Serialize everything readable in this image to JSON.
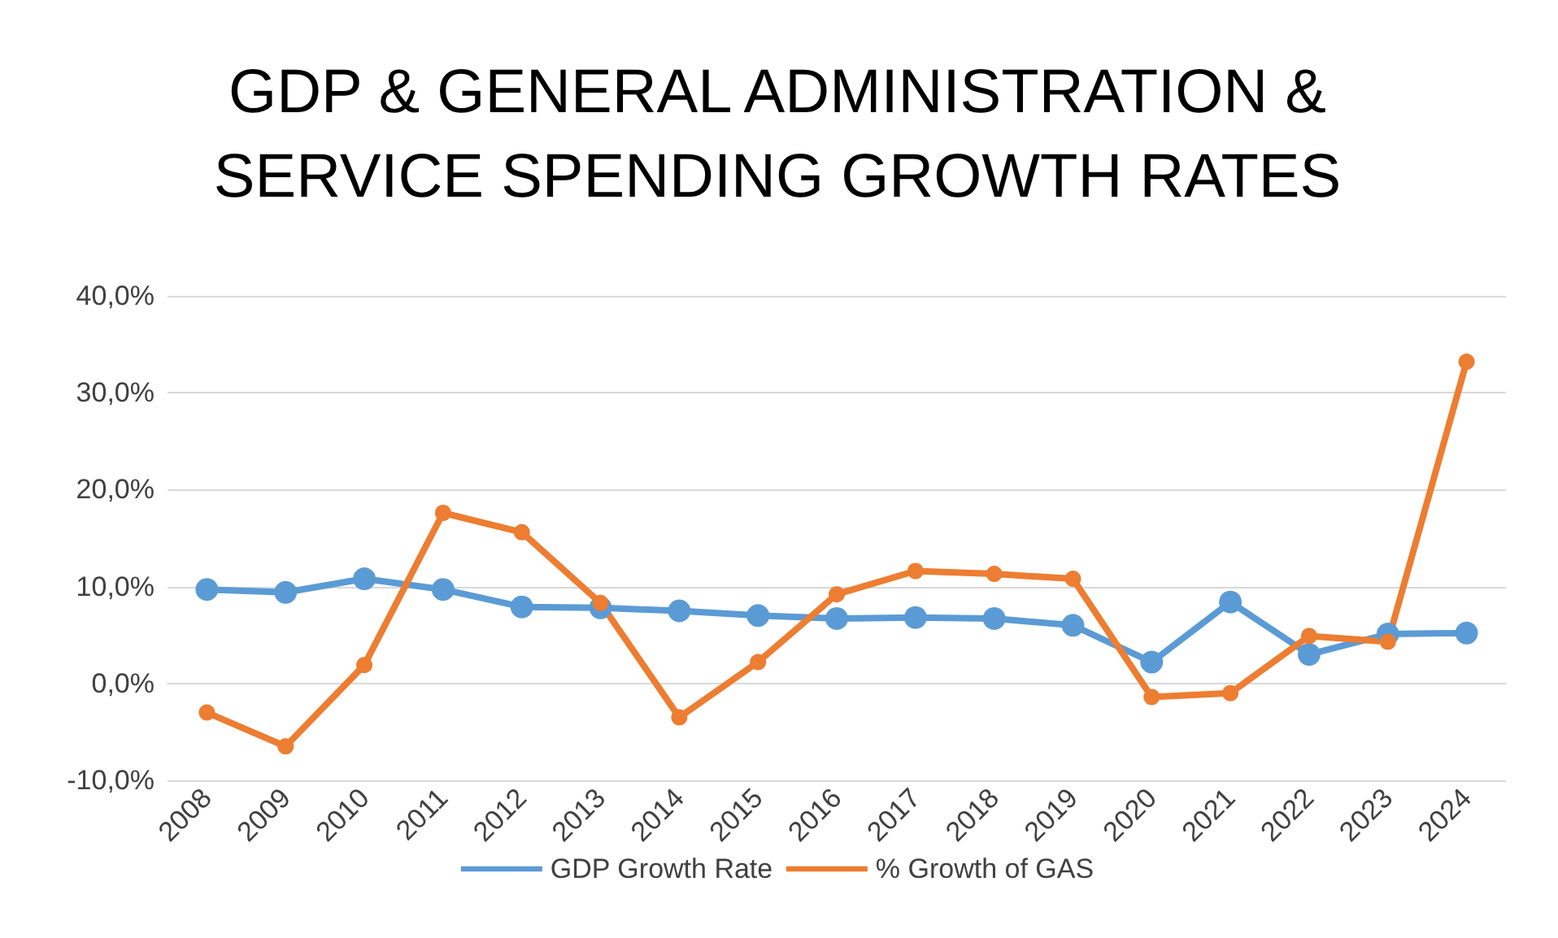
{
  "chart_data": {
    "type": "line",
    "title": "GDP & GENERAL ADMINISTRATION &\nSERVICE SPENDING GROWTH RATES",
    "categories": [
      "2008",
      "2009",
      "2010",
      "2011",
      "2012",
      "2013",
      "2014",
      "2015",
      "2016",
      "2017",
      "2018",
      "2019",
      "2020",
      "2021",
      "2022",
      "2023",
      "2024"
    ],
    "series": [
      {
        "name": "GDP Growth Rate",
        "color": "#5b9bd5",
        "values": [
          9.7,
          9.4,
          10.8,
          9.7,
          7.9,
          7.8,
          7.5,
          7.0,
          6.7,
          6.8,
          6.7,
          6.0,
          2.2,
          8.4,
          3.0,
          5.1,
          5.2
        ]
      },
      {
        "name": "% Growth of GAS",
        "color": "#ed7d31",
        "values": [
          -3.0,
          -6.5,
          1.9,
          17.6,
          15.6,
          8.3,
          -3.5,
          2.2,
          9.2,
          11.6,
          11.3,
          10.8,
          -1.4,
          -1.0,
          4.9,
          4.3,
          33.2
        ]
      }
    ],
    "ylim": [
      -10,
      40
    ],
    "yticks": [
      {
        "value": -10,
        "label": "-10,0%"
      },
      {
        "value": 0,
        "label": "0,0%"
      },
      {
        "value": 10,
        "label": "10,0%"
      },
      {
        "value": 20,
        "label": "20,0%"
      },
      {
        "value": 30,
        "label": "30,0%"
      },
      {
        "value": 40,
        "label": "40,0%"
      }
    ],
    "grid": "y",
    "legend": "bottom",
    "marker": "circle",
    "line_style": "solid"
  }
}
